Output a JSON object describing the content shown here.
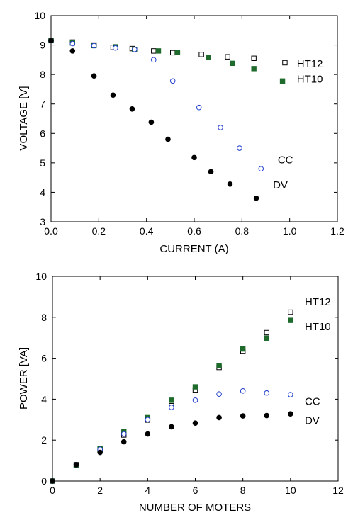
{
  "chart_data": [
    {
      "type": "scatter",
      "title": "",
      "xlabel": "CURRENT (A)",
      "ylabel": "VOLTAGE [V]",
      "xlim": [
        0.0,
        1.2
      ],
      "ylim": [
        3,
        10
      ],
      "xticks": [
        "0.0",
        "0.2",
        "0.4",
        "0.6",
        "0.8",
        "1.0",
        "1.2"
      ],
      "yticks": [
        "3",
        "4",
        "5",
        "6",
        "7",
        "8",
        "9",
        "10"
      ],
      "grid": false,
      "series": [
        {
          "name": "HT12",
          "marker": "open-square",
          "color": "#000000",
          "x": [
            0.0,
            0.09,
            0.18,
            0.26,
            0.34,
            0.43,
            0.51,
            0.63,
            0.74,
            0.85,
            0.98
          ],
          "y": [
            9.15,
            9.1,
            9.0,
            8.92,
            8.88,
            8.8,
            8.74,
            8.68,
            8.6,
            8.55,
            8.4
          ]
        },
        {
          "name": "HT10",
          "marker": "filled-square",
          "color": "#1e6b2c",
          "x": [
            0.0,
            0.09,
            0.18,
            0.27,
            0.35,
            0.45,
            0.53,
            0.66,
            0.76,
            0.85,
            0.97
          ],
          "y": [
            9.15,
            9.07,
            8.98,
            8.94,
            8.85,
            8.8,
            8.75,
            8.58,
            8.38,
            8.2,
            7.78
          ]
        },
        {
          "name": "CC",
          "marker": "open-circle",
          "color": "#1f3fcc",
          "x": [
            0.0,
            0.09,
            0.18,
            0.27,
            0.35,
            0.43,
            0.51,
            0.62,
            0.71,
            0.79,
            0.88
          ],
          "y": [
            9.15,
            9.05,
            8.98,
            8.9,
            8.85,
            8.5,
            7.78,
            6.88,
            6.2,
            5.5,
            4.8
          ]
        },
        {
          "name": "DV",
          "marker": "filled-circle",
          "color": "#000000",
          "x": [
            0.0,
            0.09,
            0.18,
            0.26,
            0.34,
            0.42,
            0.49,
            0.6,
            0.67,
            0.75,
            0.86
          ],
          "y": [
            9.15,
            8.8,
            7.95,
            7.3,
            6.83,
            6.38,
            5.8,
            5.18,
            4.7,
            4.28,
            3.8
          ]
        }
      ],
      "annotations": [
        {
          "text": "HT12",
          "x": 1.03,
          "y": 8.37
        },
        {
          "text": "HT10",
          "x": 1.03,
          "y": 7.85
        },
        {
          "text": "CC",
          "x": 0.95,
          "y": 5.1
        },
        {
          "text": "DV",
          "x": 0.93,
          "y": 4.25
        }
      ]
    },
    {
      "type": "scatter",
      "title": "",
      "xlabel": "NUMBER OF MOTERS",
      "ylabel": "POWER [VA]",
      "xlim": [
        0,
        12
      ],
      "ylim": [
        0,
        10
      ],
      "xticks": [
        "0",
        "2",
        "4",
        "6",
        "8",
        "10",
        "12"
      ],
      "yticks": [
        "0",
        "2",
        "4",
        "6",
        "8",
        "10"
      ],
      "grid": false,
      "series": [
        {
          "name": "HT12",
          "marker": "open-square",
          "color": "#000000",
          "x": [
            0,
            1,
            2,
            3,
            4,
            5,
            6,
            7,
            8,
            9,
            10
          ],
          "y": [
            0,
            0.8,
            1.55,
            2.25,
            2.98,
            3.68,
            4.45,
            5.55,
            6.35,
            7.25,
            8.25
          ]
        },
        {
          "name": "HT10",
          "marker": "filled-square",
          "color": "#1e6b2c",
          "x": [
            0,
            1,
            2,
            3,
            4,
            5,
            6,
            7,
            8,
            9,
            10
          ],
          "y": [
            0,
            0.78,
            1.6,
            2.4,
            3.1,
            3.95,
            4.6,
            5.65,
            6.45,
            6.98,
            7.85
          ]
        },
        {
          "name": "CC",
          "marker": "open-circle",
          "color": "#1f3fcc",
          "x": [
            0,
            1,
            2,
            3,
            4,
            5,
            6,
            7,
            8,
            9,
            10
          ],
          "y": [
            0,
            0.8,
            1.55,
            2.3,
            3.0,
            3.6,
            3.95,
            4.25,
            4.4,
            4.3,
            4.22
          ]
        },
        {
          "name": "DV",
          "marker": "filled-circle",
          "color": "#000000",
          "x": [
            0,
            1,
            2,
            3,
            4,
            5,
            6,
            7,
            8,
            9,
            10
          ],
          "y": [
            0,
            0.8,
            1.4,
            1.92,
            2.3,
            2.65,
            2.83,
            3.1,
            3.18,
            3.2,
            3.28
          ]
        }
      ],
      "annotations": [
        {
          "text": "HT12",
          "x": 10.6,
          "y": 8.75
        },
        {
          "text": "HT10",
          "x": 10.6,
          "y": 7.55
        },
        {
          "text": "CC",
          "x": 10.6,
          "y": 3.9
        },
        {
          "text": "DV",
          "x": 10.6,
          "y": 2.95
        }
      ]
    }
  ]
}
